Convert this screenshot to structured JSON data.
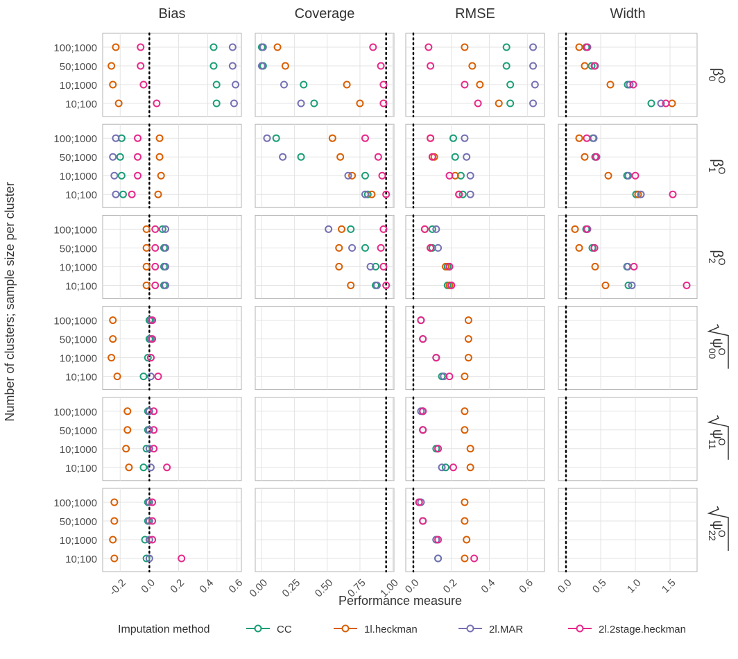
{
  "chart_data": {
    "type": "dot",
    "y_label": "Number of clusters; sample size per cluster",
    "x_label": "Performance measure",
    "legend_title": "Imputation method",
    "grid": true,
    "categories": [
      "100;1000",
      "50;1000",
      "10;1000",
      "10;100"
    ],
    "columns": [
      {
        "title": "Bias",
        "xlim": [
          -0.32,
          0.63
        ],
        "reference": 0,
        "xticks": [
          -0.2,
          {
            "value": 0,
            "label": "0.0"
          },
          0.2,
          0.4,
          0.6
        ]
      },
      {
        "title": "Coverage",
        "xlim": [
          -0.05,
          1.01
        ],
        "reference": 0.95,
        "xticks": [
          {
            "value": 0,
            "label": "0.00"
          },
          0.25,
          {
            "value": 0.5,
            "label": "0.50"
          },
          0.75,
          {
            "value": 1,
            "label": "1.00"
          }
        ]
      },
      {
        "title": "RMSE",
        "xlim": [
          -0.04,
          0.69
        ],
        "reference": 0,
        "xticks": [
          {
            "value": 0,
            "label": "0.0"
          },
          0.2,
          0.4,
          0.6
        ]
      },
      {
        "title": "Width",
        "xlim": [
          -0.11,
          1.89
        ],
        "reference": 0,
        "xticks": [
          {
            "value": 0,
            "label": "0.0"
          },
          0.5,
          {
            "value": 1,
            "label": "1.0"
          },
          1.5
        ]
      }
    ],
    "rows": [
      {
        "symbol": "β",
        "sub": "0",
        "sup": "O"
      },
      {
        "symbol": "β",
        "sub": "1",
        "sup": "O"
      },
      {
        "symbol": "β",
        "sub": "2",
        "sup": "O"
      },
      {
        "symbol": "ψ",
        "sub": "00",
        "sup": "O",
        "sqrt": true
      },
      {
        "symbol": "ψ",
        "sub": "11",
        "sup": "O",
        "sqrt": true
      },
      {
        "symbol": "ψ",
        "sub": "22",
        "sup": "O",
        "sqrt": true
      }
    ],
    "series": [
      {
        "name": "CC",
        "color": "#1b9e77",
        "values": [
          [
            [
              0.44,
              0.44,
              0.46,
              0.46
            ],
            [
              0.0,
              0.01,
              0.32,
              0.4
            ],
            [
              0.49,
              0.49,
              0.51,
              0.51
            ],
            [
              0.29,
              0.37,
              0.89,
              1.23
            ]
          ],
          [
            [
              -0.19,
              -0.2,
              -0.19,
              -0.18
            ],
            [
              0.11,
              0.3,
              0.79,
              0.81
            ],
            [
              0.21,
              0.22,
              0.25,
              0.26
            ],
            [
              0.39,
              0.42,
              0.88,
              1.01
            ]
          ],
          [
            [
              0.09,
              0.1,
              0.1,
              0.1
            ],
            [
              0.68,
              0.79,
              0.87,
              0.87
            ],
            [
              0.1,
              0.1,
              0.18,
              0.18
            ],
            [
              0.29,
              0.38,
              0.88,
              0.9
            ]
          ],
          [
            [
              0.0,
              0.0,
              -0.01,
              -0.04
            ],
            [
              null,
              null,
              null,
              null
            ],
            [
              0.04,
              0.05,
              0.12,
              0.15
            ],
            [
              null,
              null,
              null,
              null
            ]
          ],
          [
            [
              -0.01,
              -0.01,
              -0.02,
              -0.04
            ],
            [
              null,
              null,
              null,
              null
            ],
            [
              0.05,
              0.05,
              0.12,
              0.17
            ],
            [
              null,
              null,
              null,
              null
            ]
          ],
          [
            [
              -0.01,
              -0.01,
              -0.03,
              -0.02
            ],
            [
              null,
              null,
              null,
              null
            ],
            [
              0.03,
              0.05,
              0.12,
              0.13
            ],
            [
              null,
              null,
              null,
              null
            ]
          ]
        ]
      },
      {
        "name": "1l.heckman",
        "color": "#d95f02",
        "values": [
          [
            [
              -0.23,
              -0.26,
              -0.25,
              -0.21
            ],
            [
              0.12,
              0.18,
              0.65,
              0.75
            ],
            [
              0.27,
              0.31,
              0.35,
              0.45
            ],
            [
              0.19,
              0.27,
              0.64,
              1.53
            ]
          ],
          [
            [
              0.07,
              0.07,
              0.08,
              0.06
            ],
            [
              0.54,
              0.6,
              0.69,
              0.84
            ],
            [
              0.09,
              0.11,
              0.22,
              0.24
            ],
            [
              0.19,
              0.27,
              0.61,
              1.04
            ]
          ],
          [
            [
              -0.02,
              -0.02,
              -0.02,
              -0.02
            ],
            [
              0.61,
              0.59,
              0.59,
              0.68
            ],
            [
              0.06,
              0.09,
              0.17,
              0.19
            ],
            [
              0.13,
              0.19,
              0.42,
              0.57
            ]
          ],
          [
            [
              -0.25,
              -0.25,
              -0.26,
              -0.22
            ],
            [
              null,
              null,
              null,
              null
            ],
            [
              0.29,
              0.29,
              0.29,
              0.27
            ],
            [
              null,
              null,
              null,
              null
            ]
          ],
          [
            [
              -0.15,
              -0.15,
              -0.16,
              -0.14
            ],
            [
              null,
              null,
              null,
              null
            ],
            [
              0.27,
              0.27,
              0.3,
              0.3
            ],
            [
              null,
              null,
              null,
              null
            ]
          ],
          [
            [
              -0.24,
              -0.24,
              -0.25,
              -0.24
            ],
            [
              null,
              null,
              null,
              null
            ],
            [
              0.27,
              0.27,
              0.28,
              0.27
            ],
            [
              null,
              null,
              null,
              null
            ]
          ]
        ]
      },
      {
        "name": "2l.MAR",
        "color": "#7570b3",
        "values": [
          [
            [
              0.57,
              0.57,
              0.59,
              0.58
            ],
            [
              0.01,
              0.0,
              0.17,
              0.3
            ],
            [
              0.63,
              0.63,
              0.64,
              0.63
            ],
            [
              0.31,
              0.42,
              0.92,
              1.37
            ]
          ],
          [
            [
              -0.23,
              -0.25,
              -0.24,
              -0.23
            ],
            [
              0.04,
              0.16,
              0.66,
              0.79
            ],
            [
              0.27,
              0.28,
              0.3,
              0.3
            ],
            [
              0.4,
              0.44,
              0.9,
              1.08
            ]
          ],
          [
            [
              0.11,
              0.11,
              0.11,
              0.11
            ],
            [
              0.51,
              0.69,
              0.83,
              0.88
            ],
            [
              0.12,
              0.13,
              0.19,
              0.2
            ],
            [
              0.31,
              0.41,
              0.89,
              0.95
            ]
          ],
          [
            [
              0.01,
              0.01,
              0.01,
              0.01
            ],
            [
              null,
              null,
              null,
              null
            ],
            [
              0.04,
              0.05,
              0.12,
              0.16
            ],
            [
              null,
              null,
              null,
              null
            ]
          ],
          [
            [
              0.0,
              0.0,
              0.0,
              0.01
            ],
            [
              null,
              null,
              null,
              null
            ],
            [
              0.04,
              0.05,
              0.13,
              0.15
            ],
            [
              null,
              null,
              null,
              null
            ]
          ],
          [
            [
              0.0,
              0.0,
              0.0,
              0.0
            ],
            [
              null,
              null,
              null,
              null
            ],
            [
              0.04,
              0.05,
              0.12,
              0.13
            ],
            [
              null,
              null,
              null,
              null
            ]
          ]
        ]
      },
      {
        "name": "2l.2stage.heckman",
        "color": "#e7298a",
        "values": [
          [
            [
              -0.06,
              -0.06,
              -0.04,
              0.05
            ],
            [
              0.85,
              0.91,
              0.93,
              0.93
            ],
            [
              0.08,
              0.09,
              0.27,
              0.34
            ],
            [
              0.3,
              0.41,
              0.97,
              1.44
            ]
          ],
          [
            [
              -0.08,
              -0.08,
              -0.08,
              -0.12
            ],
            [
              0.79,
              0.89,
              0.92,
              0.95
            ],
            [
              0.09,
              0.1,
              0.19,
              0.24
            ],
            [
              0.3,
              0.43,
              1.0,
              1.54
            ]
          ],
          [
            [
              0.04,
              0.04,
              0.04,
              0.04
            ],
            [
              0.93,
              0.91,
              0.93,
              0.95
            ],
            [
              0.06,
              0.09,
              0.19,
              0.2
            ],
            [
              0.3,
              0.41,
              0.98,
              1.74
            ]
          ],
          [
            [
              0.02,
              0.02,
              0.01,
              0.06
            ],
            [
              null,
              null,
              null,
              null
            ],
            [
              0.04,
              0.05,
              0.12,
              0.19
            ],
            [
              null,
              null,
              null,
              null
            ]
          ],
          [
            [
              0.03,
              0.03,
              0.03,
              0.12
            ],
            [
              null,
              null,
              null,
              null
            ],
            [
              0.05,
              0.05,
              0.13,
              0.21
            ],
            [
              null,
              null,
              null,
              null
            ]
          ],
          [
            [
              0.02,
              0.02,
              0.02,
              0.22
            ],
            [
              null,
              null,
              null,
              null
            ],
            [
              0.03,
              0.05,
              0.13,
              0.32
            ],
            [
              null,
              null,
              null,
              null
            ]
          ]
        ]
      }
    ]
  }
}
